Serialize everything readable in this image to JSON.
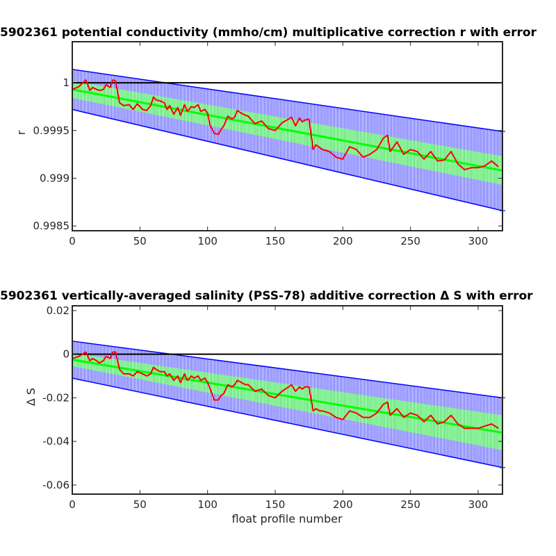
{
  "chart_data": [
    {
      "type": "line",
      "title": "5902361 potential conductivity (mmho/cm) multiplicative correction r with error",
      "xlabel": "",
      "ylabel": "r",
      "xlim": [
        0,
        318
      ],
      "ylim": [
        0.99845,
        1.00043
      ],
      "xticks": [
        0,
        50,
        100,
        150,
        200,
        250,
        300
      ],
      "yticks": [
        0.9985,
        0.999,
        0.9995,
        1
      ],
      "ytick_labels": [
        "0.9985",
        "0.999",
        "0.9995",
        "1"
      ],
      "reference_line": 1,
      "colors": {
        "raw": "#ff0000",
        "fit": "#00ff00",
        "error": "#0000ff",
        "reference": "#000000"
      },
      "fit": {
        "x": [
          0,
          318
        ],
        "y": [
          0.99993,
          0.99908
        ],
        "half_width_start": 9e-05,
        "half_width_end": 0.00015
      },
      "error_band": {
        "x": [
          0,
          318
        ],
        "upper": [
          1.00014,
          0.99949
        ],
        "lower": [
          0.99972,
          0.99866
        ]
      },
      "series": [
        {
          "x": [
            0,
            5,
            10,
            13,
            15,
            18,
            20,
            23,
            25,
            28,
            30,
            32,
            35,
            38,
            42,
            45,
            48,
            52,
            55,
            58,
            60,
            62,
            65,
            68,
            70,
            72,
            75,
            78,
            80,
            83,
            85,
            88,
            90,
            93,
            95,
            98,
            100,
            102,
            105,
            108,
            110,
            112,
            115,
            118,
            120,
            122,
            125,
            128,
            130,
            135,
            140,
            145,
            150,
            155,
            160,
            162,
            165,
            168,
            170,
            172,
            175,
            178,
            180,
            183,
            185,
            190,
            195,
            200,
            205,
            210,
            215,
            220,
            225,
            230,
            233,
            235,
            240,
            245,
            250,
            255,
            260,
            265,
            270,
            275,
            280,
            285,
            290,
            295,
            300,
            305,
            310,
            315
          ],
          "y": [
            0.99993,
            0.99996,
            1.00003,
            0.99992,
            0.99995,
            0.99993,
            0.99992,
            0.99993,
            0.99998,
            0.99995,
            1.00003,
            1.00002,
            0.99979,
            0.99976,
            0.99977,
            0.99972,
            0.99978,
            0.99972,
            0.99971,
            0.99976,
            0.99985,
            0.99982,
            0.99981,
            0.99979,
            0.99972,
            0.99976,
            0.99967,
            0.99974,
            0.99966,
            0.99977,
            0.9997,
            0.99975,
            0.99974,
            0.99977,
            0.9997,
            0.99972,
            0.99968,
            0.99955,
            0.99947,
            0.99946,
            0.99951,
            0.99955,
            0.99965,
            0.99962,
            0.99964,
            0.99971,
            0.99968,
            0.99966,
            0.99965,
            0.99957,
            0.9996,
            0.99952,
            0.9995,
            0.99958,
            0.99962,
            0.99964,
            0.99955,
            0.99963,
            0.99959,
            0.99961,
            0.99962,
            0.9993,
            0.99935,
            0.99932,
            0.9993,
            0.99928,
            0.99922,
            0.9992,
            0.99933,
            0.9993,
            0.99922,
            0.99925,
            0.9993,
            0.99942,
            0.99945,
            0.99928,
            0.99938,
            0.99925,
            0.9993,
            0.99928,
            0.9992,
            0.99928,
            0.99918,
            0.99919,
            0.99928,
            0.99915,
            0.99909,
            0.99911,
            0.99911,
            0.99913,
            0.99918,
            0.99912
          ]
        }
      ]
    },
    {
      "type": "line",
      "title": "5902361 vertically-averaged salinity (PSS-78) additive correction Δ S with error",
      "xlabel": "float profile number",
      "ylabel": "Δ S",
      "xlim": [
        0,
        318
      ],
      "ylim": [
        -0.0642,
        0.0222
      ],
      "xticks": [
        0,
        50,
        100,
        150,
        200,
        250,
        300
      ],
      "yticks": [
        -0.06,
        -0.04,
        -0.02,
        0,
        0.02
      ],
      "ytick_labels": [
        "-0.06",
        "-0.04",
        "-0.02",
        "0",
        "0.02"
      ],
      "reference_line": 0,
      "colors": {
        "raw": "#ff0000",
        "fit": "#00ff00",
        "error": "#0000ff",
        "reference": "#000000"
      },
      "fit": {
        "x": [
          0,
          318
        ],
        "y": [
          -0.0025,
          -0.036
        ],
        "half_width_start": 0.003,
        "half_width_end": 0.008
      },
      "error_band": {
        "x": [
          0,
          318
        ],
        "upper": [
          0.006,
          -0.02
        ],
        "lower": [
          -0.011,
          -0.052
        ]
      },
      "series": [
        {
          "x": [
            0,
            5,
            10,
            13,
            15,
            18,
            20,
            23,
            25,
            28,
            30,
            32,
            35,
            38,
            42,
            45,
            48,
            52,
            55,
            58,
            60,
            62,
            65,
            68,
            70,
            72,
            75,
            78,
            80,
            83,
            85,
            88,
            90,
            93,
            95,
            98,
            100,
            102,
            105,
            108,
            110,
            112,
            115,
            118,
            120,
            122,
            125,
            128,
            130,
            135,
            140,
            145,
            150,
            155,
            160,
            162,
            165,
            168,
            170,
            172,
            175,
            178,
            180,
            183,
            185,
            190,
            195,
            200,
            205,
            210,
            215,
            220,
            225,
            230,
            233,
            235,
            240,
            245,
            250,
            255,
            260,
            265,
            270,
            275,
            280,
            285,
            290,
            295,
            300,
            305,
            310,
            315
          ],
          "y": [
            -0.002,
            -0.001,
            0.001,
            -0.003,
            -0.002,
            -0.003,
            -0.004,
            -0.003,
            -0.001,
            -0.002,
            0.001,
            0.001,
            -0.007,
            -0.009,
            -0.009,
            -0.01,
            -0.008,
            -0.009,
            -0.01,
            -0.009,
            -0.006,
            -0.007,
            -0.008,
            -0.008,
            -0.01,
            -0.009,
            -0.012,
            -0.01,
            -0.013,
            -0.009,
            -0.012,
            -0.01,
            -0.011,
            -0.01,
            -0.012,
            -0.011,
            -0.013,
            -0.016,
            -0.021,
            -0.021,
            -0.019,
            -0.018,
            -0.014,
            -0.015,
            -0.014,
            -0.012,
            -0.013,
            -0.014,
            -0.014,
            -0.017,
            -0.016,
            -0.019,
            -0.02,
            -0.017,
            -0.015,
            -0.014,
            -0.017,
            -0.015,
            -0.016,
            -0.015,
            -0.015,
            -0.026,
            -0.025,
            -0.026,
            -0.026,
            -0.027,
            -0.029,
            -0.03,
            -0.026,
            -0.027,
            -0.029,
            -0.029,
            -0.027,
            -0.023,
            -0.022,
            -0.028,
            -0.025,
            -0.029,
            -0.027,
            -0.028,
            -0.031,
            -0.028,
            -0.032,
            -0.031,
            -0.028,
            -0.032,
            -0.034,
            -0.034,
            -0.034,
            -0.033,
            -0.032,
            -0.034
          ]
        }
      ]
    }
  ]
}
